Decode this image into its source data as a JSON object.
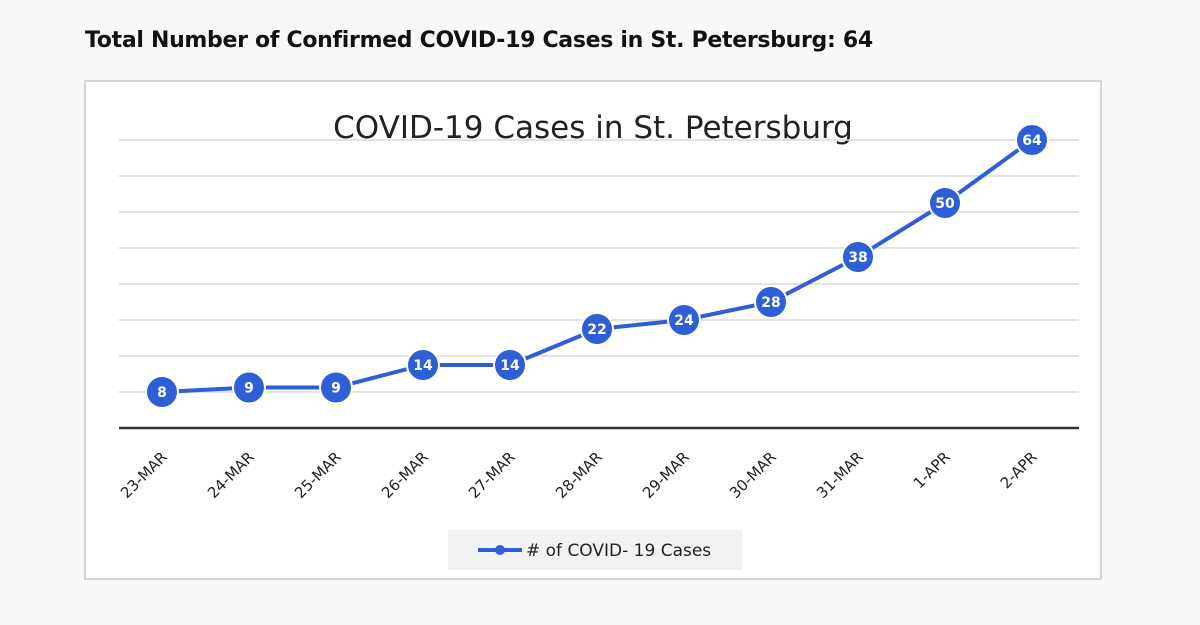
{
  "heading": "Total Number of Confirmed COVID-19 Cases in St. Petersburg: 64",
  "colors": {
    "series": "#2e5fd6",
    "gridline": "#d9d9d9",
    "axis": "#333333",
    "legend_background": "#f2f2f2"
  },
  "chart_data": {
    "type": "line",
    "title": "COVID-19 Cases in St. Petersburg",
    "xlabel": "",
    "ylabel": "",
    "categories": [
      "23-MAR",
      "24-MAR",
      "25-MAR",
      "26-MAR",
      "27-MAR",
      "28-MAR",
      "29-MAR",
      "30-MAR",
      "31-MAR",
      "1-APR",
      "2-APR"
    ],
    "series": [
      {
        "name": "# of COVID- 19 Cases",
        "values": [
          8,
          9,
          9,
          14,
          14,
          22,
          24,
          28,
          38,
          50,
          64
        ]
      }
    ],
    "ylim": [
      0,
      70
    ],
    "grid": true,
    "data_labels": true,
    "legend": "bottom"
  }
}
